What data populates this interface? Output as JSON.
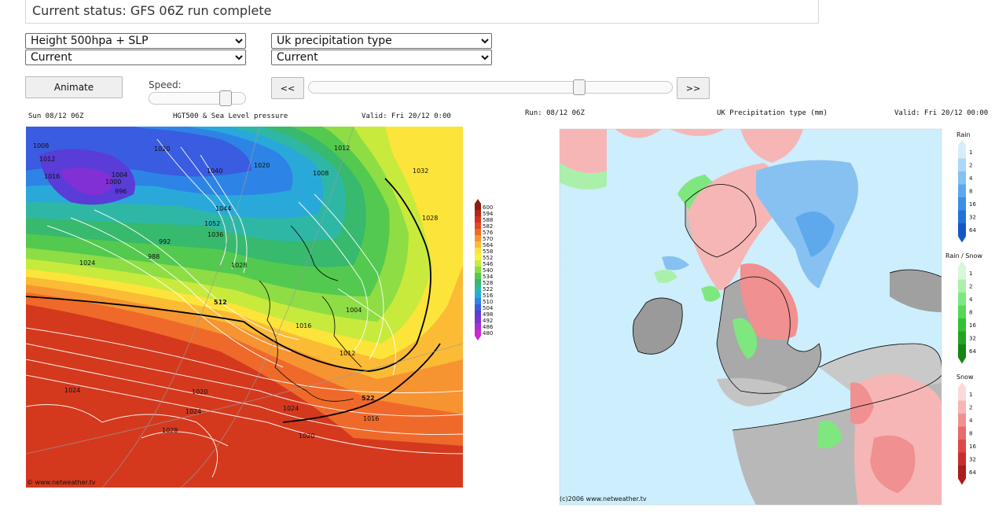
{
  "status": {
    "text": "Current status: GFS 06Z run complete"
  },
  "left_controls": {
    "chart_select": "Height 500hpa + SLP",
    "time_select": "Current"
  },
  "right_controls": {
    "chart_select": "Uk precipitation type",
    "time_select": "Current"
  },
  "animate": {
    "label": "Animate"
  },
  "speed": {
    "label": "Speed:",
    "level": 0.82
  },
  "nav": {
    "prev_label": "<<",
    "next_label": ">>",
    "timeline_position": 0.75
  },
  "left_map": {
    "header_run": "Sun 08/12 06Z",
    "header_title": "HGT500 & Sea Level pressure",
    "header_valid": "Valid: Fri 20/12 0:00",
    "footer": "© www.netweather.tv",
    "colorbar_values": [
      "600",
      "594",
      "588",
      "582",
      "576",
      "570",
      "564",
      "558",
      "552",
      "546",
      "540",
      "534",
      "528",
      "522",
      "516",
      "510",
      "504",
      "498",
      "492",
      "486",
      "480"
    ],
    "colorbar_colors": [
      "#8e1b12",
      "#b52418",
      "#d3301c",
      "#e54722",
      "#ef6a2a",
      "#f69431",
      "#fbbb35",
      "#fde43a",
      "#f4f53b",
      "#c8ea3c",
      "#8edd44",
      "#53c94f",
      "#37b96e",
      "#2fb7a6",
      "#29a9da",
      "#2d84e6",
      "#3a5ce0",
      "#5a3cd8",
      "#8030d4",
      "#a92fd0",
      "#c92acd"
    ],
    "pressure_labels": [
      "1008",
      "1012",
      "1016",
      "1020",
      "1004",
      "1000",
      "996",
      "992",
      "988",
      "1024",
      "1028",
      "1040",
      "1044",
      "1052",
      "1036",
      "1032",
      "1020",
      "1012",
      "1008",
      "1004",
      "1016",
      "1028",
      "1024",
      "1020",
      "1024",
      "1028",
      "1016",
      "1012",
      "1020",
      "1024"
    ],
    "height_labels": [
      "512",
      "522"
    ]
  },
  "right_map": {
    "header_run": "Run: 08/12 06Z",
    "header_title": "UK Precipitation type (mm)",
    "header_valid": "Valid: Fri 20/12 00:00",
    "footer": "(c)2006 www.netweather.tv",
    "legend": [
      {
        "title": "Rain",
        "values": [
          "1",
          "2",
          "4",
          "8",
          "16",
          "32",
          "64"
        ],
        "colors": [
          "#d6ecfb",
          "#aed7f7",
          "#86c1f2",
          "#5ea9ec",
          "#3b8fe4",
          "#2272d8",
          "#1458c8"
        ]
      },
      {
        "title": "Rain / Snow",
        "values": [
          "1",
          "2",
          "4",
          "8",
          "16",
          "32",
          "64"
        ],
        "colors": [
          "#d8f7d8",
          "#aaf0aa",
          "#7fe77f",
          "#55d955",
          "#33c233",
          "#22a422",
          "#168516"
        ]
      },
      {
        "title": "Snow",
        "values": [
          "1",
          "2",
          "4",
          "8",
          "16",
          "32",
          "64"
        ],
        "colors": [
          "#fbdada",
          "#f6b6b6",
          "#f09090",
          "#e86a6a",
          "#dc4848",
          "#c92d2d",
          "#ad1b1b"
        ]
      }
    ]
  }
}
